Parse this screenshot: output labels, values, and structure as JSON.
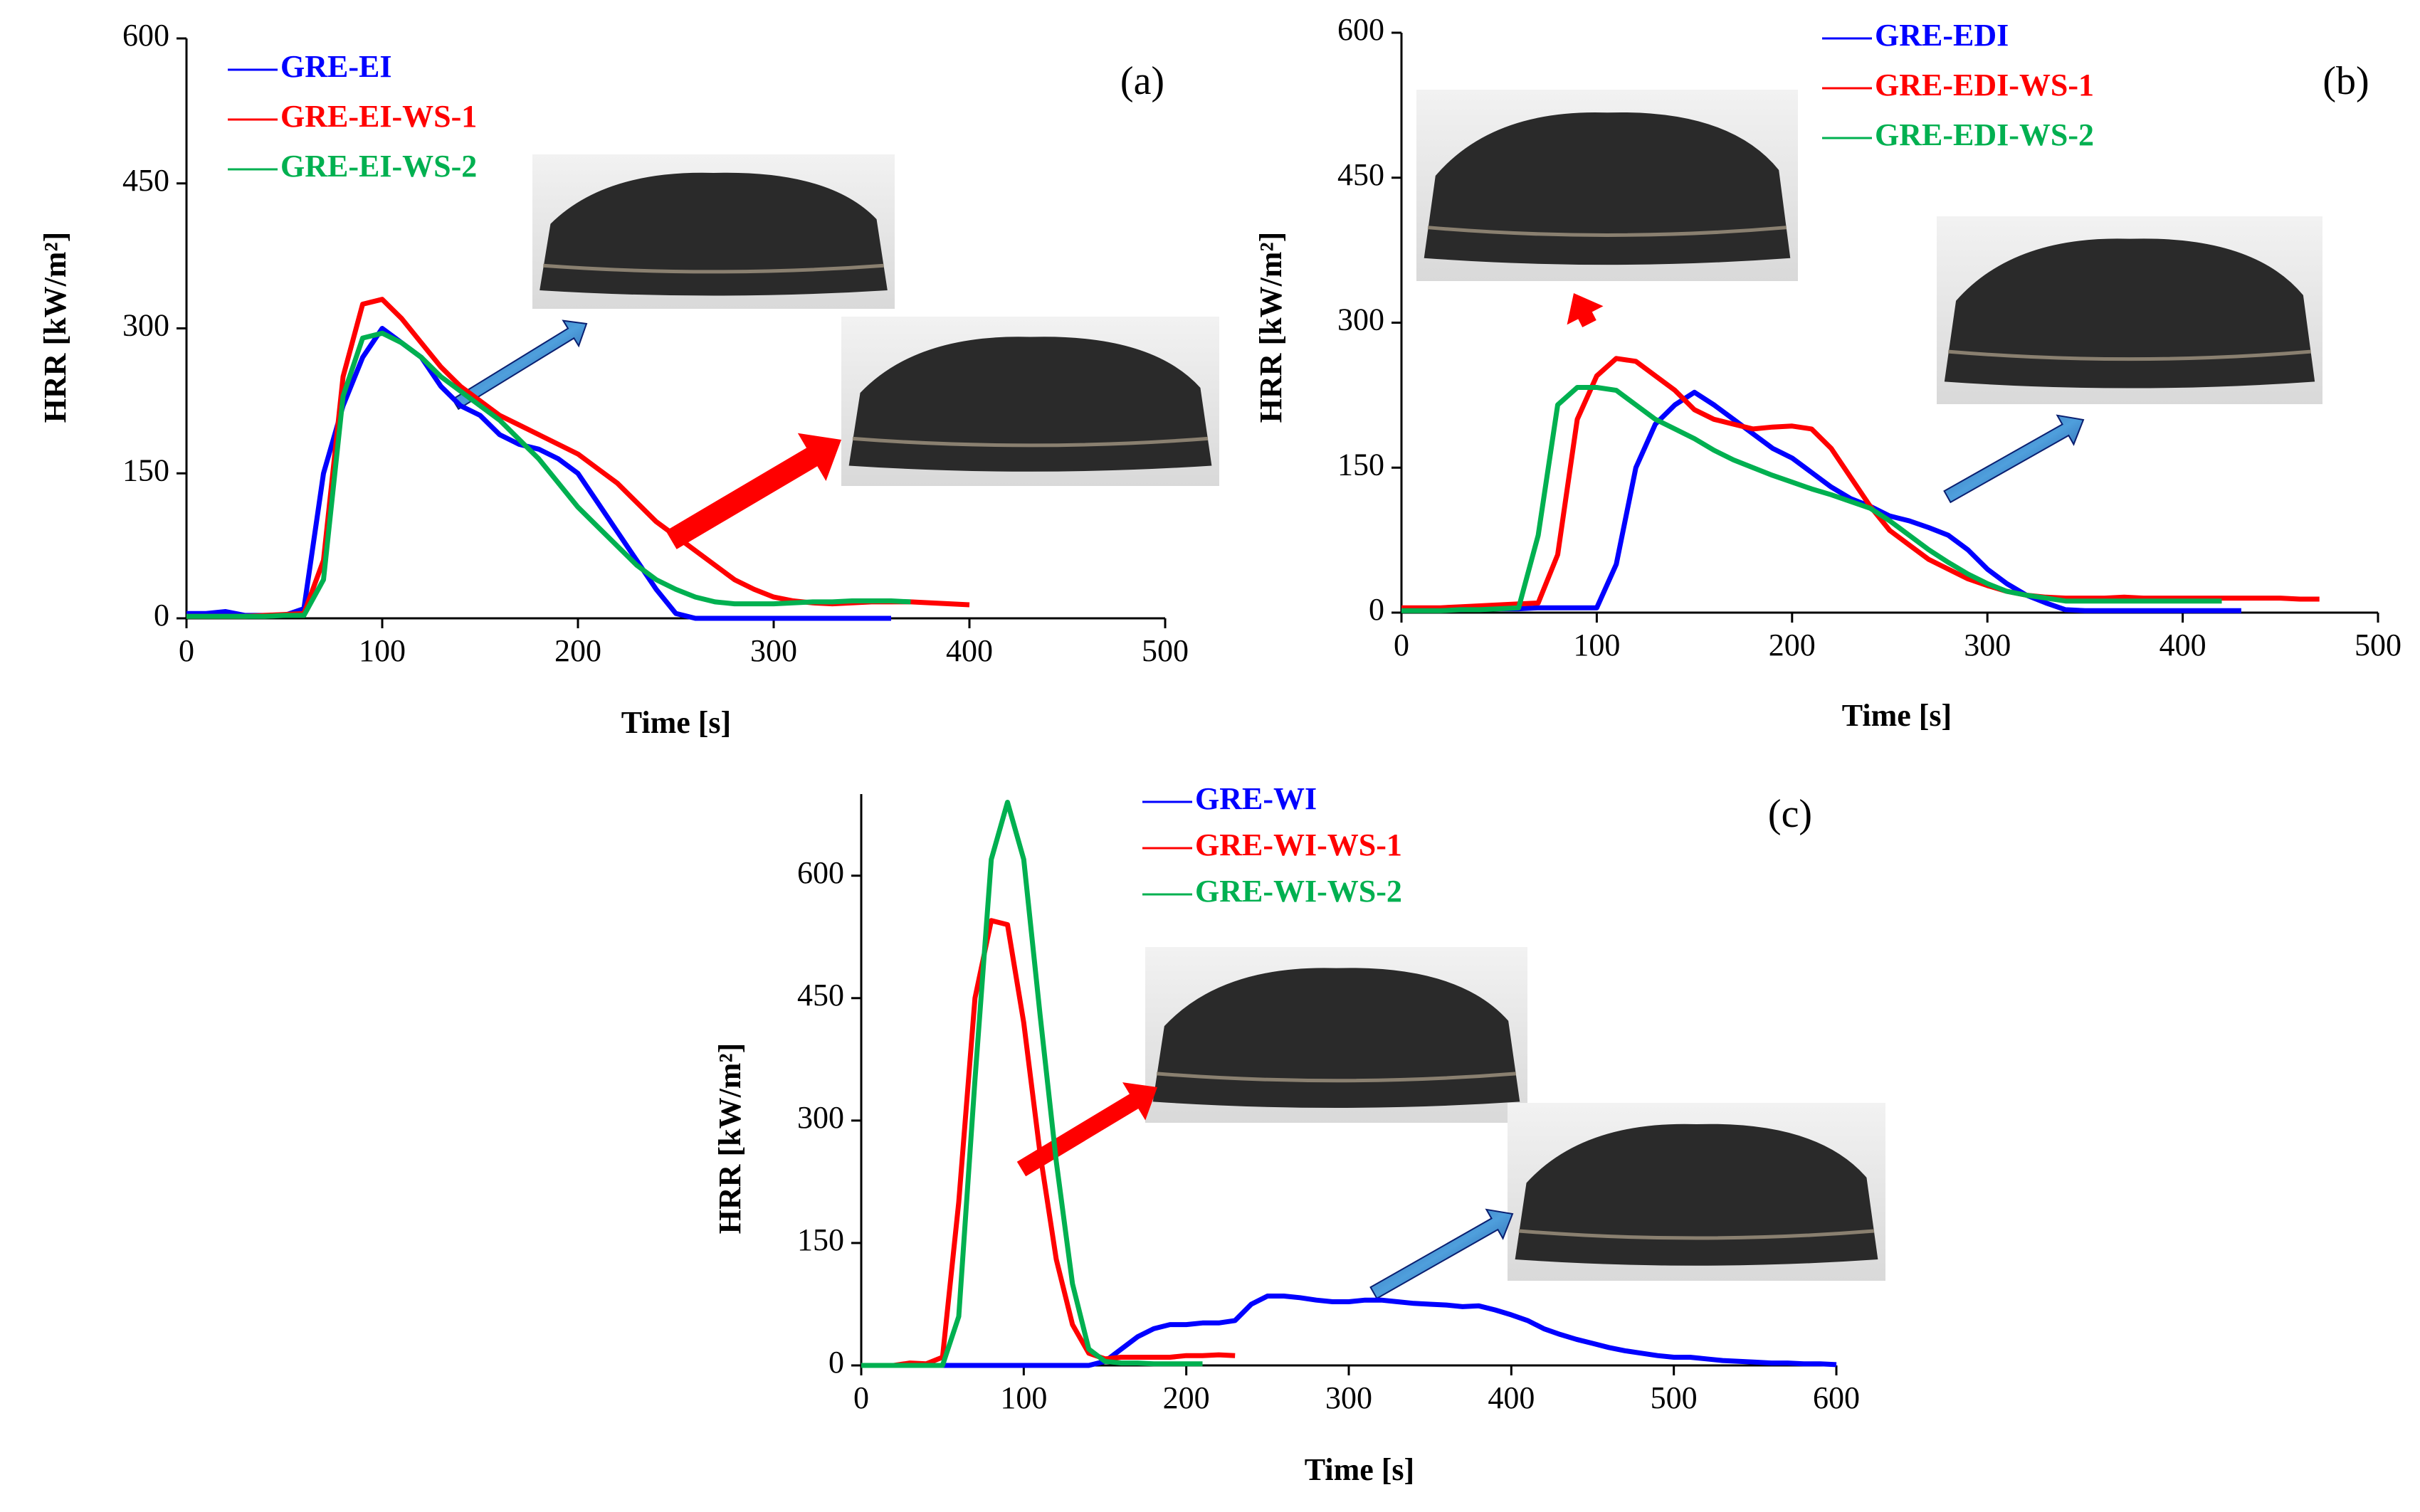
{
  "chart_data": [
    {
      "type": "line",
      "annotation": "(a)",
      "xlabel": "Time [s]",
      "ylabel": "HRR [kW/m²]",
      "xlim": [
        0,
        500
      ],
      "xticks": [
        0,
        100,
        200,
        300,
        400,
        500
      ],
      "ylim": [
        0,
        600
      ],
      "yticks": [
        0,
        150,
        300,
        450,
        600
      ],
      "x": [
        0,
        10,
        20,
        30,
        40,
        50,
        60,
        70,
        80,
        90,
        100,
        110,
        120,
        130,
        140,
        150,
        160,
        170,
        180,
        190,
        200,
        210,
        220,
        230,
        240,
        250,
        260,
        270,
        280,
        290,
        300,
        310,
        320,
        330,
        340,
        350,
        360,
        370,
        380,
        390,
        400
      ],
      "series": [
        {
          "name": "GRE-EI",
          "color": "#0000ff",
          "values": [
            5,
            5,
            7,
            3,
            3,
            3,
            10,
            150,
            220,
            270,
            300,
            285,
            270,
            240,
            220,
            210,
            190,
            180,
            175,
            165,
            150,
            120,
            90,
            60,
            30,
            5,
            0,
            0,
            0,
            0,
            0,
            0,
            0,
            0,
            0,
            0,
            0,
            null,
            null,
            null,
            null
          ]
        },
        {
          "name": "GRE-EI-WS-1",
          "color": "#ff0000",
          "values": [
            2,
            2,
            2,
            2,
            3,
            4,
            5,
            60,
            250,
            325,
            330,
            310,
            285,
            260,
            240,
            225,
            210,
            200,
            190,
            180,
            170,
            155,
            140,
            120,
            100,
            85,
            70,
            55,
            40,
            30,
            22,
            18,
            16,
            15,
            16,
            17,
            17,
            17,
            16,
            15,
            14
          ]
        },
        {
          "name": "GRE-EI-WS-2",
          "color": "#00b050",
          "values": [
            2,
            2,
            2,
            2,
            2,
            3,
            3,
            40,
            230,
            290,
            295,
            285,
            270,
            250,
            235,
            220,
            205,
            185,
            165,
            140,
            115,
            95,
            75,
            55,
            40,
            30,
            22,
            17,
            15,
            15,
            15,
            16,
            17,
            17,
            18,
            18,
            18,
            17,
            null,
            null,
            null
          ]
        }
      ]
    },
    {
      "type": "line",
      "annotation": "(b)",
      "xlabel": "Time [s]",
      "ylabel": "HRR [kW/m²]",
      "xlim": [
        0,
        500
      ],
      "xticks": [
        0,
        100,
        200,
        300,
        400,
        500
      ],
      "ylim": [
        0,
        600
      ],
      "yticks": [
        0,
        150,
        300,
        450,
        600
      ],
      "x": [
        0,
        10,
        20,
        30,
        40,
        50,
        60,
        70,
        80,
        90,
        100,
        110,
        120,
        130,
        140,
        150,
        160,
        170,
        180,
        190,
        200,
        210,
        220,
        230,
        240,
        250,
        260,
        270,
        280,
        290,
        300,
        310,
        320,
        330,
        340,
        350,
        360,
        370,
        380,
        390,
        400,
        410,
        420,
        430,
        440,
        450,
        460,
        470
      ],
      "series": [
        {
          "name": "GRE-EDI",
          "color": "#0000ff",
          "values": [
            3,
            3,
            3,
            3,
            4,
            4,
            4,
            5,
            5,
            5,
            5,
            50,
            150,
            195,
            215,
            228,
            215,
            200,
            185,
            170,
            160,
            145,
            130,
            118,
            110,
            100,
            95,
            88,
            80,
            65,
            45,
            30,
            18,
            10,
            3,
            2,
            2,
            2,
            2,
            2,
            2,
            2,
            2,
            2,
            null,
            null,
            null,
            null
          ]
        },
        {
          "name": "GRE-EDI-WS-1",
          "color": "#ff0000",
          "values": [
            5,
            5,
            5,
            6,
            7,
            8,
            9,
            10,
            60,
            200,
            245,
            263,
            260,
            245,
            230,
            210,
            200,
            195,
            190,
            192,
            193,
            190,
            170,
            140,
            110,
            85,
            70,
            55,
            45,
            35,
            28,
            22,
            18,
            16,
            15,
            15,
            15,
            16,
            15,
            15,
            15,
            15,
            15,
            15,
            15,
            15,
            14,
            14
          ]
        },
        {
          "name": "GRE-EDI-WS-2",
          "color": "#00b050",
          "values": [
            2,
            2,
            2,
            3,
            3,
            4,
            5,
            80,
            215,
            233,
            233,
            230,
            215,
            200,
            190,
            180,
            168,
            158,
            150,
            142,
            135,
            128,
            122,
            115,
            108,
            95,
            80,
            65,
            52,
            40,
            30,
            22,
            18,
            15,
            12,
            12,
            12,
            12,
            12,
            12,
            12,
            12,
            12,
            null,
            null,
            null,
            null,
            null
          ]
        }
      ]
    },
    {
      "type": "line",
      "annotation": "(c)",
      "xlabel": "Time [s]",
      "ylabel": "HRR [kW/m²]",
      "xlim": [
        0,
        600
      ],
      "xticks": [
        0,
        100,
        200,
        300,
        400,
        500,
        600
      ],
      "ylim": [
        0,
        700
      ],
      "yticks": [
        0,
        150,
        300,
        450,
        600
      ],
      "x": [
        0,
        10,
        20,
        30,
        40,
        50,
        60,
        70,
        80,
        90,
        100,
        110,
        120,
        130,
        140,
        150,
        160,
        170,
        180,
        190,
        200,
        210,
        220,
        230,
        240,
        250,
        260,
        270,
        280,
        290,
        300,
        310,
        320,
        330,
        340,
        350,
        360,
        370,
        380,
        390,
        400,
        410,
        420,
        430,
        440,
        450,
        460,
        470,
        480,
        490,
        500,
        510,
        520,
        530,
        540,
        550,
        560,
        570,
        580,
        590,
        600
      ],
      "series": [
        {
          "name": "GRE-WI",
          "color": "#0000ff",
          "values": [
            0,
            0,
            0,
            0,
            0,
            0,
            0,
            0,
            0,
            0,
            0,
            0,
            0,
            0,
            0,
            5,
            20,
            35,
            45,
            50,
            50,
            52,
            52,
            55,
            75,
            85,
            85,
            83,
            80,
            78,
            78,
            80,
            80,
            78,
            76,
            75,
            74,
            72,
            73,
            68,
            62,
            55,
            45,
            38,
            32,
            27,
            22,
            18,
            15,
            12,
            10,
            10,
            8,
            6,
            5,
            4,
            3,
            3,
            2,
            2,
            1
          ]
        },
        {
          "name": "GRE-WI-WS-1",
          "color": "#ff0000",
          "values": [
            0,
            0,
            0,
            3,
            2,
            10,
            200,
            450,
            545,
            540,
            420,
            260,
            130,
            50,
            15,
            8,
            10,
            10,
            10,
            10,
            12,
            12,
            13,
            12,
            null,
            null,
            null,
            null,
            null,
            null,
            null,
            null,
            null,
            null,
            null,
            null,
            null,
            null,
            null,
            null,
            null,
            null,
            null,
            null,
            null,
            null,
            null,
            null,
            null,
            null,
            null,
            null,
            null,
            null,
            null,
            null,
            null,
            null,
            null,
            null,
            null
          ]
        },
        {
          "name": "GRE-WI-WS-2",
          "color": "#00b050",
          "values": [
            0,
            0,
            0,
            0,
            0,
            0,
            60,
            350,
            620,
            690,
            620,
            430,
            250,
            100,
            20,
            5,
            3,
            3,
            2,
            2,
            2,
            2,
            null,
            null,
            null,
            null,
            null,
            null,
            null,
            null,
            null,
            null,
            null,
            null,
            null,
            null,
            null,
            null,
            null,
            null,
            null,
            null,
            null,
            null,
            null,
            null,
            null,
            null,
            null,
            null,
            null,
            null,
            null,
            null,
            null,
            null,
            null,
            null,
            null,
            null,
            null
          ]
        }
      ]
    }
  ]
}
